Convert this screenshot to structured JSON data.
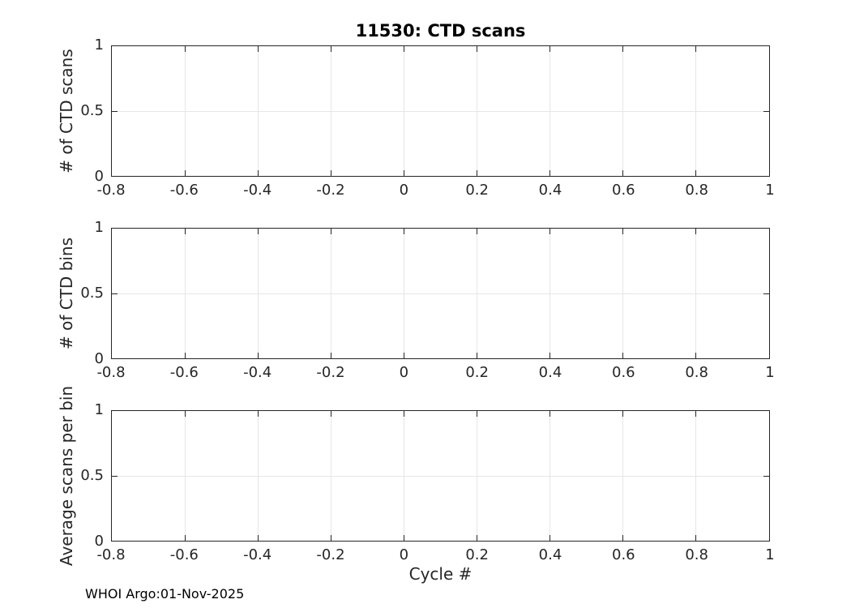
{
  "figure": {
    "title": "11530: CTD scans",
    "xlabel": "Cycle #",
    "footer": "WHOI Argo:01-Nov-2025",
    "colors": {
      "background": "#ffffff",
      "axis": "#262626",
      "grid": "#e6e6e6",
      "text": "#262626",
      "title": "#000000"
    }
  },
  "chart_data": [
    {
      "type": "line",
      "title": "11530: CTD scans",
      "ylabel": "# of CTD scans",
      "xlabel": "",
      "xlim": [
        -0.8,
        1
      ],
      "ylim": [
        0,
        1
      ],
      "x_ticks": [
        -0.8,
        -0.6,
        -0.4,
        -0.2,
        0,
        0.2,
        0.4,
        0.6,
        0.8,
        1
      ],
      "x_tick_labels": [
        "-0.8",
        "-0.6",
        "-0.4",
        "-0.2",
        "0",
        "0.2",
        "0.4",
        "0.6",
        "0.8",
        "1"
      ],
      "y_ticks": [
        0,
        0.5,
        1
      ],
      "y_tick_labels": [
        "0",
        "0.5",
        "1"
      ],
      "grid": true,
      "legend": null,
      "series": []
    },
    {
      "type": "line",
      "title": "",
      "ylabel": "# of CTD bins",
      "xlabel": "",
      "xlim": [
        -0.8,
        1
      ],
      "ylim": [
        0,
        1
      ],
      "x_ticks": [
        -0.8,
        -0.6,
        -0.4,
        -0.2,
        0,
        0.2,
        0.4,
        0.6,
        0.8,
        1
      ],
      "x_tick_labels": [
        "-0.8",
        "-0.6",
        "-0.4",
        "-0.2",
        "0",
        "0.2",
        "0.4",
        "0.6",
        "0.8",
        "1"
      ],
      "y_ticks": [
        0,
        0.5,
        1
      ],
      "y_tick_labels": [
        "0",
        "0.5",
        "1"
      ],
      "grid": true,
      "legend": null,
      "series": []
    },
    {
      "type": "line",
      "title": "",
      "ylabel": "Average scans per bin",
      "xlabel": "Cycle #",
      "xlim": [
        -0.8,
        1
      ],
      "ylim": [
        0,
        1
      ],
      "x_ticks": [
        -0.8,
        -0.6,
        -0.4,
        -0.2,
        0,
        0.2,
        0.4,
        0.6,
        0.8,
        1
      ],
      "x_tick_labels": [
        "-0.8",
        "-0.6",
        "-0.4",
        "-0.2",
        "0",
        "0.2",
        "0.4",
        "0.6",
        "0.8",
        "1"
      ],
      "y_ticks": [
        0,
        0.5,
        1
      ],
      "y_tick_labels": [
        "0",
        "0.5",
        "1"
      ],
      "grid": true,
      "legend": null,
      "series": []
    }
  ]
}
